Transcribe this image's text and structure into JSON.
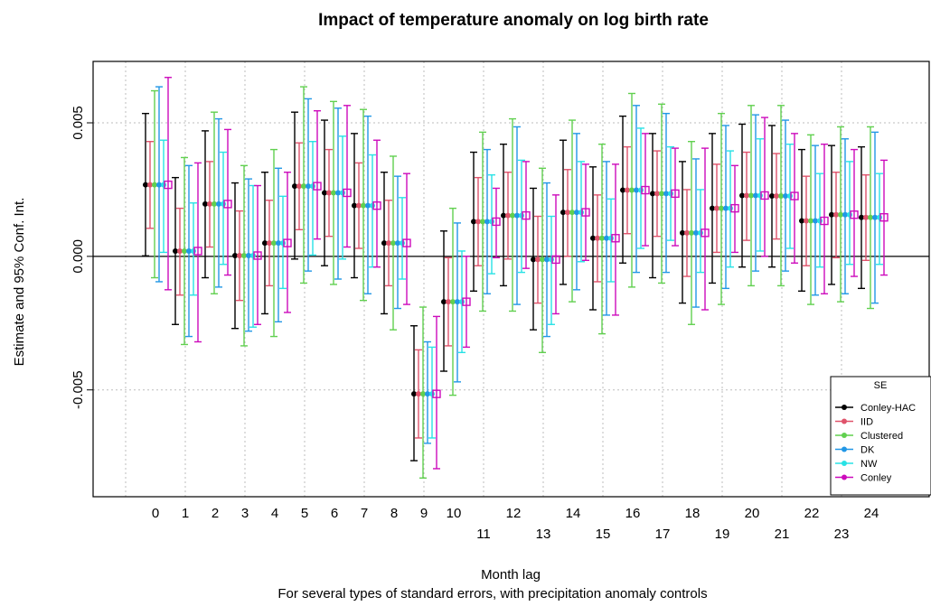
{
  "chart_data": {
    "type": "errorbar",
    "title": "Impact of temperature anomaly on log birth rate",
    "xlabel": "Month lag",
    "subtitle": "For several types of standard errors, with precipitation anomaly controls",
    "ylabel": "Estimate and 95% Conf. Int.",
    "x": [
      0,
      1,
      2,
      3,
      4,
      5,
      6,
      7,
      8,
      9,
      10,
      11,
      12,
      13,
      14,
      15,
      16,
      17,
      18,
      19,
      20,
      21,
      22,
      23,
      24
    ],
    "x_tick_labels": [
      "0",
      "1",
      "2",
      "3",
      "4",
      "5",
      "6",
      "7",
      "8",
      "9",
      "10",
      "11",
      "12",
      "13",
      "14",
      "15",
      "16",
      "17",
      "18",
      "19",
      "20",
      "21",
      "22",
      "23",
      "24"
    ],
    "y_ticks": [
      -0.005,
      0.0,
      0.005
    ],
    "y_tick_labels": [
      "-0.005",
      "0.000",
      "0.005"
    ],
    "ylim": [
      -0.009,
      0.0073
    ],
    "hline": 0,
    "grid": true,
    "legend": {
      "title": "SE",
      "position": "bottom-right"
    },
    "estimates": [
      0.00268,
      0.0002,
      0.00196,
      3e-05,
      0.0005,
      0.00263,
      0.00238,
      0.0019,
      0.0005,
      -0.00515,
      -0.0017,
      0.0013,
      0.00153,
      -0.00012,
      0.00165,
      0.00068,
      0.00248,
      0.00235,
      0.00088,
      0.0018,
      0.00228,
      0.00226,
      0.00133,
      0.00156,
      0.00146
    ],
    "series": [
      {
        "name": "Conley-HAC",
        "color": "#000000",
        "lower": [
          2e-05,
          -0.00255,
          -0.0008,
          -0.0027,
          -0.00215,
          -0.0001,
          -0.00035,
          -0.0008,
          -0.00215,
          -0.00765,
          -0.0043,
          -0.0013,
          -0.0011,
          -0.00275,
          -0.00105,
          -0.002,
          -0.00025,
          -0.0008,
          -0.00175,
          -0.001,
          -0.0004,
          -0.0004,
          -0.0013,
          -0.00105,
          -0.0012
        ],
        "upper": [
          0.00535,
          0.00295,
          0.0047,
          0.00275,
          0.00315,
          0.0054,
          0.0051,
          0.0046,
          0.00315,
          -0.0026,
          0.00095,
          0.0039,
          0.0042,
          0.00255,
          0.00435,
          0.00335,
          0.00525,
          0.0046,
          0.00355,
          0.0046,
          0.00495,
          0.0049,
          0.004,
          0.00415,
          0.0041
        ]
      },
      {
        "name": "IID",
        "color": "#df536b",
        "lower": [
          0.00105,
          -0.00145,
          0.00035,
          -0.00165,
          -0.0011,
          0.001,
          0.00075,
          0.0003,
          -0.0011,
          -0.0068,
          -0.00335,
          -0.00035,
          -0.0001,
          -0.00175,
          0.0,
          -0.00095,
          0.00085,
          0.00075,
          -0.00075,
          0.00015,
          0.0006,
          0.00065,
          -0.00035,
          -5e-05,
          -0.00015
        ],
        "upper": [
          0.0043,
          0.0018,
          0.00355,
          0.0017,
          0.0021,
          0.00425,
          0.004,
          0.0035,
          0.0021,
          -0.0035,
          -5e-05,
          0.00295,
          0.00315,
          0.0015,
          0.00325,
          0.0023,
          0.0041,
          0.00395,
          0.0025,
          0.00345,
          0.0039,
          0.00385,
          0.003,
          0.00315,
          0.00305
        ]
      },
      {
        "name": "Clustered",
        "color": "#61d04f",
        "lower": [
          -0.0008,
          -0.0033,
          -0.0014,
          -0.00335,
          -0.003,
          -0.001,
          -0.00105,
          -0.00165,
          -0.00275,
          -0.0083,
          -0.0052,
          -0.00205,
          -0.00205,
          -0.0036,
          -0.0017,
          -0.0029,
          -0.00115,
          -0.001,
          -0.00255,
          -0.0018,
          -0.0011,
          -0.0011,
          -0.0018,
          -0.0017,
          -0.00195
        ],
        "upper": [
          0.0062,
          0.0037,
          0.0054,
          0.0034,
          0.004,
          0.00635,
          0.0058,
          0.0055,
          0.00375,
          -0.0019,
          0.0018,
          0.00465,
          0.00515,
          0.0033,
          0.0051,
          0.0042,
          0.0061,
          0.0057,
          0.0043,
          0.00535,
          0.00565,
          0.00565,
          0.00455,
          0.00485,
          0.00485
        ]
      },
      {
        "name": "DK",
        "color": "#2297e6",
        "lower": [
          -0.00095,
          -0.003,
          -0.00115,
          -0.0028,
          -0.00245,
          -0.00055,
          -0.00085,
          -0.0014,
          -0.00195,
          -0.007,
          -0.0047,
          -0.0014,
          -0.0018,
          -0.003,
          -0.00125,
          -0.0022,
          -0.0006,
          -0.0006,
          -0.0019,
          -0.0012,
          -0.00055,
          -0.00055,
          -0.00145,
          -0.0014,
          -0.00175
        ],
        "upper": [
          0.00635,
          0.0034,
          0.00515,
          0.0029,
          0.0033,
          0.0059,
          0.00555,
          0.00525,
          0.003,
          -0.0032,
          0.00125,
          0.004,
          0.00485,
          0.00275,
          0.0046,
          0.00355,
          0.00565,
          0.00535,
          0.00365,
          0.0049,
          0.0053,
          0.0051,
          0.00415,
          0.0044,
          0.00465
        ]
      },
      {
        "name": "NW",
        "color": "#28e2e5",
        "lower": [
          0.00015,
          -0.00145,
          -0.0003,
          -0.00265,
          -0.0012,
          5e-05,
          -0.0001,
          -0.0004,
          -0.00085,
          -0.0068,
          -0.0036,
          -0.00065,
          -0.0006,
          -0.00255,
          -0.0002,
          -0.00095,
          0.0003,
          0.0006,
          -0.0006,
          -0.0004,
          0.0002,
          0.0003,
          -0.0004,
          -0.0003,
          -0.0003
        ],
        "upper": [
          0.00435,
          0.002,
          0.0039,
          0.00265,
          0.00225,
          0.0043,
          0.0045,
          0.0038,
          0.0022,
          -0.0034,
          0.0002,
          0.00305,
          0.0036,
          0.0015,
          0.00355,
          0.00215,
          0.0048,
          0.0041,
          0.0025,
          0.00395,
          0.0044,
          0.0042,
          0.0031,
          0.00355,
          0.0031
        ]
      },
      {
        "name": "Conley",
        "color": "#cd0bbc",
        "lower": [
          -0.00125,
          -0.0032,
          -0.0007,
          -0.00255,
          -0.0021,
          0.00065,
          0.00035,
          -0.0004,
          -0.0018,
          -0.00795,
          -0.0034,
          -5e-05,
          -0.00045,
          -0.00215,
          -0.00015,
          -0.0022,
          0.0004,
          0.0004,
          -0.002,
          0.00015,
          0.0,
          -0.00025,
          -0.0014,
          -0.00075,
          -0.0007
        ],
        "upper": [
          0.0067,
          0.0035,
          0.00475,
          0.00265,
          0.00315,
          0.00545,
          0.00565,
          0.00435,
          0.0031,
          -0.00225,
          0.0,
          0.00255,
          0.00355,
          0.0023,
          0.00345,
          0.00345,
          0.0046,
          0.00405,
          0.00405,
          0.0034,
          0.0052,
          0.0046,
          0.0042,
          0.004,
          0.0036
        ]
      }
    ]
  }
}
